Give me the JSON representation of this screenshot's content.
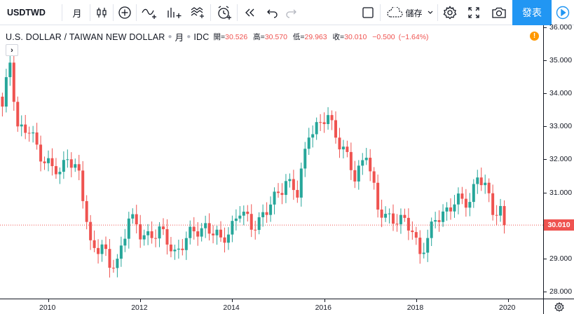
{
  "toolbar": {
    "symbol": "USDTWD",
    "interval": "月",
    "save_label": "儲存",
    "publish_label": "發表",
    "icons": [
      "candles-icon",
      "add-compare-icon",
      "indicators-icon",
      "financials-icon",
      "templates-icon",
      "alert-icon",
      "replay-icon",
      "undo-icon",
      "redo-icon",
      "layout-icon",
      "cloud-save-icon",
      "settings-icon",
      "fullscreen-icon",
      "snapshot-icon",
      "play-icon"
    ]
  },
  "legend": {
    "title": "U.S. DOLLAR / TAIWAN NEW DOLLAR",
    "interval": "月",
    "source": "IDC",
    "open_label": "開=",
    "open": "30.526",
    "high_label": "高=",
    "high": "30.570",
    "low_label": "低=",
    "low": "29.963",
    "close_label": "收=",
    "close": "30.010",
    "change": "−0.500",
    "change_pct": "(−1.64%)"
  },
  "price_axis": {
    "ticks": [
      "36.000",
      "35.000",
      "34.000",
      "33.000",
      "32.000",
      "31.000",
      "30.000",
      "29.000",
      "28.000"
    ],
    "last_price": "30.010"
  },
  "time_axis": {
    "ticks": [
      "2010",
      "2012",
      "2014",
      "2016",
      "2018",
      "2020"
    ]
  },
  "colors": {
    "up": "#26a69a",
    "down": "#ef5350",
    "accent": "#2196f3",
    "warning": "#ff9800"
  },
  "chart_data": {
    "type": "candlestick",
    "title": "U.S. DOLLAR / TAIWAN NEW DOLLAR",
    "interval": "monthly",
    "x_range": [
      "2009-01",
      "2019-12"
    ],
    "ylim": [
      28,
      36
    ],
    "grid": false,
    "series": [
      {
        "name": "USDTWD",
        "points": [
          {
            "x": "2009-01",
            "close": 33.5
          },
          {
            "x": "2009-03",
            "close": 35.0
          },
          {
            "x": "2009-05",
            "close": 33.0
          },
          {
            "x": "2009-08",
            "close": 32.8
          },
          {
            "x": "2009-12",
            "close": 32.0
          },
          {
            "x": "2010-04",
            "close": 31.5
          },
          {
            "x": "2010-06",
            "close": 32.2
          },
          {
            "x": "2010-09",
            "close": 31.5
          },
          {
            "x": "2010-12",
            "close": 29.4
          },
          {
            "x": "2011-03",
            "close": 29.4
          },
          {
            "x": "2011-05",
            "close": 28.7
          },
          {
            "x": "2011-07",
            "close": 28.9
          },
          {
            "x": "2011-10",
            "close": 30.3
          },
          {
            "x": "2012-01",
            "close": 29.7
          },
          {
            "x": "2012-06",
            "close": 29.8
          },
          {
            "x": "2012-10",
            "close": 29.2
          },
          {
            "x": "2013-03",
            "close": 29.8
          },
          {
            "x": "2013-06",
            "close": 30.0
          },
          {
            "x": "2013-10",
            "close": 29.5
          },
          {
            "x": "2014-03",
            "close": 30.4
          },
          {
            "x": "2014-06",
            "close": 30.0
          },
          {
            "x": "2014-10",
            "close": 30.4
          },
          {
            "x": "2015-03",
            "close": 31.4
          },
          {
            "x": "2015-06",
            "close": 30.9
          },
          {
            "x": "2015-09",
            "close": 32.9
          },
          {
            "x": "2015-12",
            "close": 33.0
          },
          {
            "x": "2016-02",
            "close": 33.3
          },
          {
            "x": "2016-06",
            "close": 32.3
          },
          {
            "x": "2016-09",
            "close": 31.4
          },
          {
            "x": "2016-12",
            "close": 32.3
          },
          {
            "x": "2017-03",
            "close": 30.4
          },
          {
            "x": "2017-06",
            "close": 30.3
          },
          {
            "x": "2017-09",
            "close": 30.1
          },
          {
            "x": "2017-12",
            "close": 29.9
          },
          {
            "x": "2018-02",
            "close": 29.2
          },
          {
            "x": "2018-04",
            "close": 29.5
          },
          {
            "x": "2018-06",
            "close": 30.2
          },
          {
            "x": "2018-09",
            "close": 30.5
          },
          {
            "x": "2018-12",
            "close": 30.7
          },
          {
            "x": "2019-03",
            "close": 30.8
          },
          {
            "x": "2019-05",
            "close": 31.5
          },
          {
            "x": "2019-07",
            "close": 31.1
          },
          {
            "x": "2019-09",
            "close": 30.5
          },
          {
            "x": "2019-11",
            "close": 30.5
          },
          {
            "x": "2019-12",
            "close": 30.01
          }
        ]
      }
    ]
  }
}
